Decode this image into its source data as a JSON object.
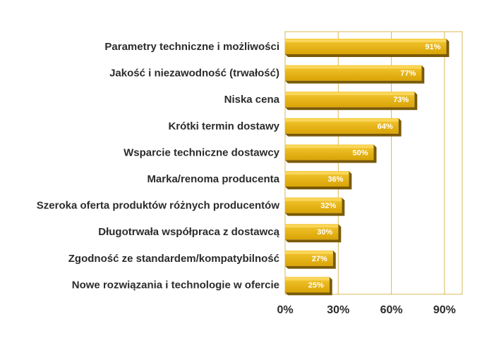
{
  "chart_data": {
    "type": "bar",
    "orientation": "horizontal",
    "categories": [
      "Parametry techniczne i możliwości",
      "Jakość i niezawodność (trwałość)",
      "Niska cena",
      "Krótki termin dostawy",
      "Wsparcie techniczne dostawcy",
      "Marka/renoma producenta",
      "Szeroka oferta produktów różnych producentów",
      "Długotrwała współpraca z dostawcą",
      "Zgodność ze standardem/kompatybilność",
      "Nowe rozwiązania i technologie w ofercie"
    ],
    "values": [
      91,
      77,
      73,
      64,
      50,
      36,
      32,
      30,
      27,
      25
    ],
    "value_labels": [
      "91%",
      "77%",
      "73%",
      "64%",
      "50%",
      "36%",
      "32%",
      "30%",
      "27%",
      "25%"
    ],
    "xlim": [
      0,
      100
    ],
    "xticks": [
      0,
      30,
      60,
      90
    ],
    "xtick_labels": [
      "0%",
      "30%",
      "60%",
      "90%"
    ],
    "grid": true,
    "colors": {
      "bar_top": "#f5c832",
      "bar_bottom": "#d9a406",
      "bar_depth": "#7a5a08",
      "grid": "#d9b85a",
      "text": "#2b2b2b",
      "value_text": "#ffffff"
    }
  }
}
